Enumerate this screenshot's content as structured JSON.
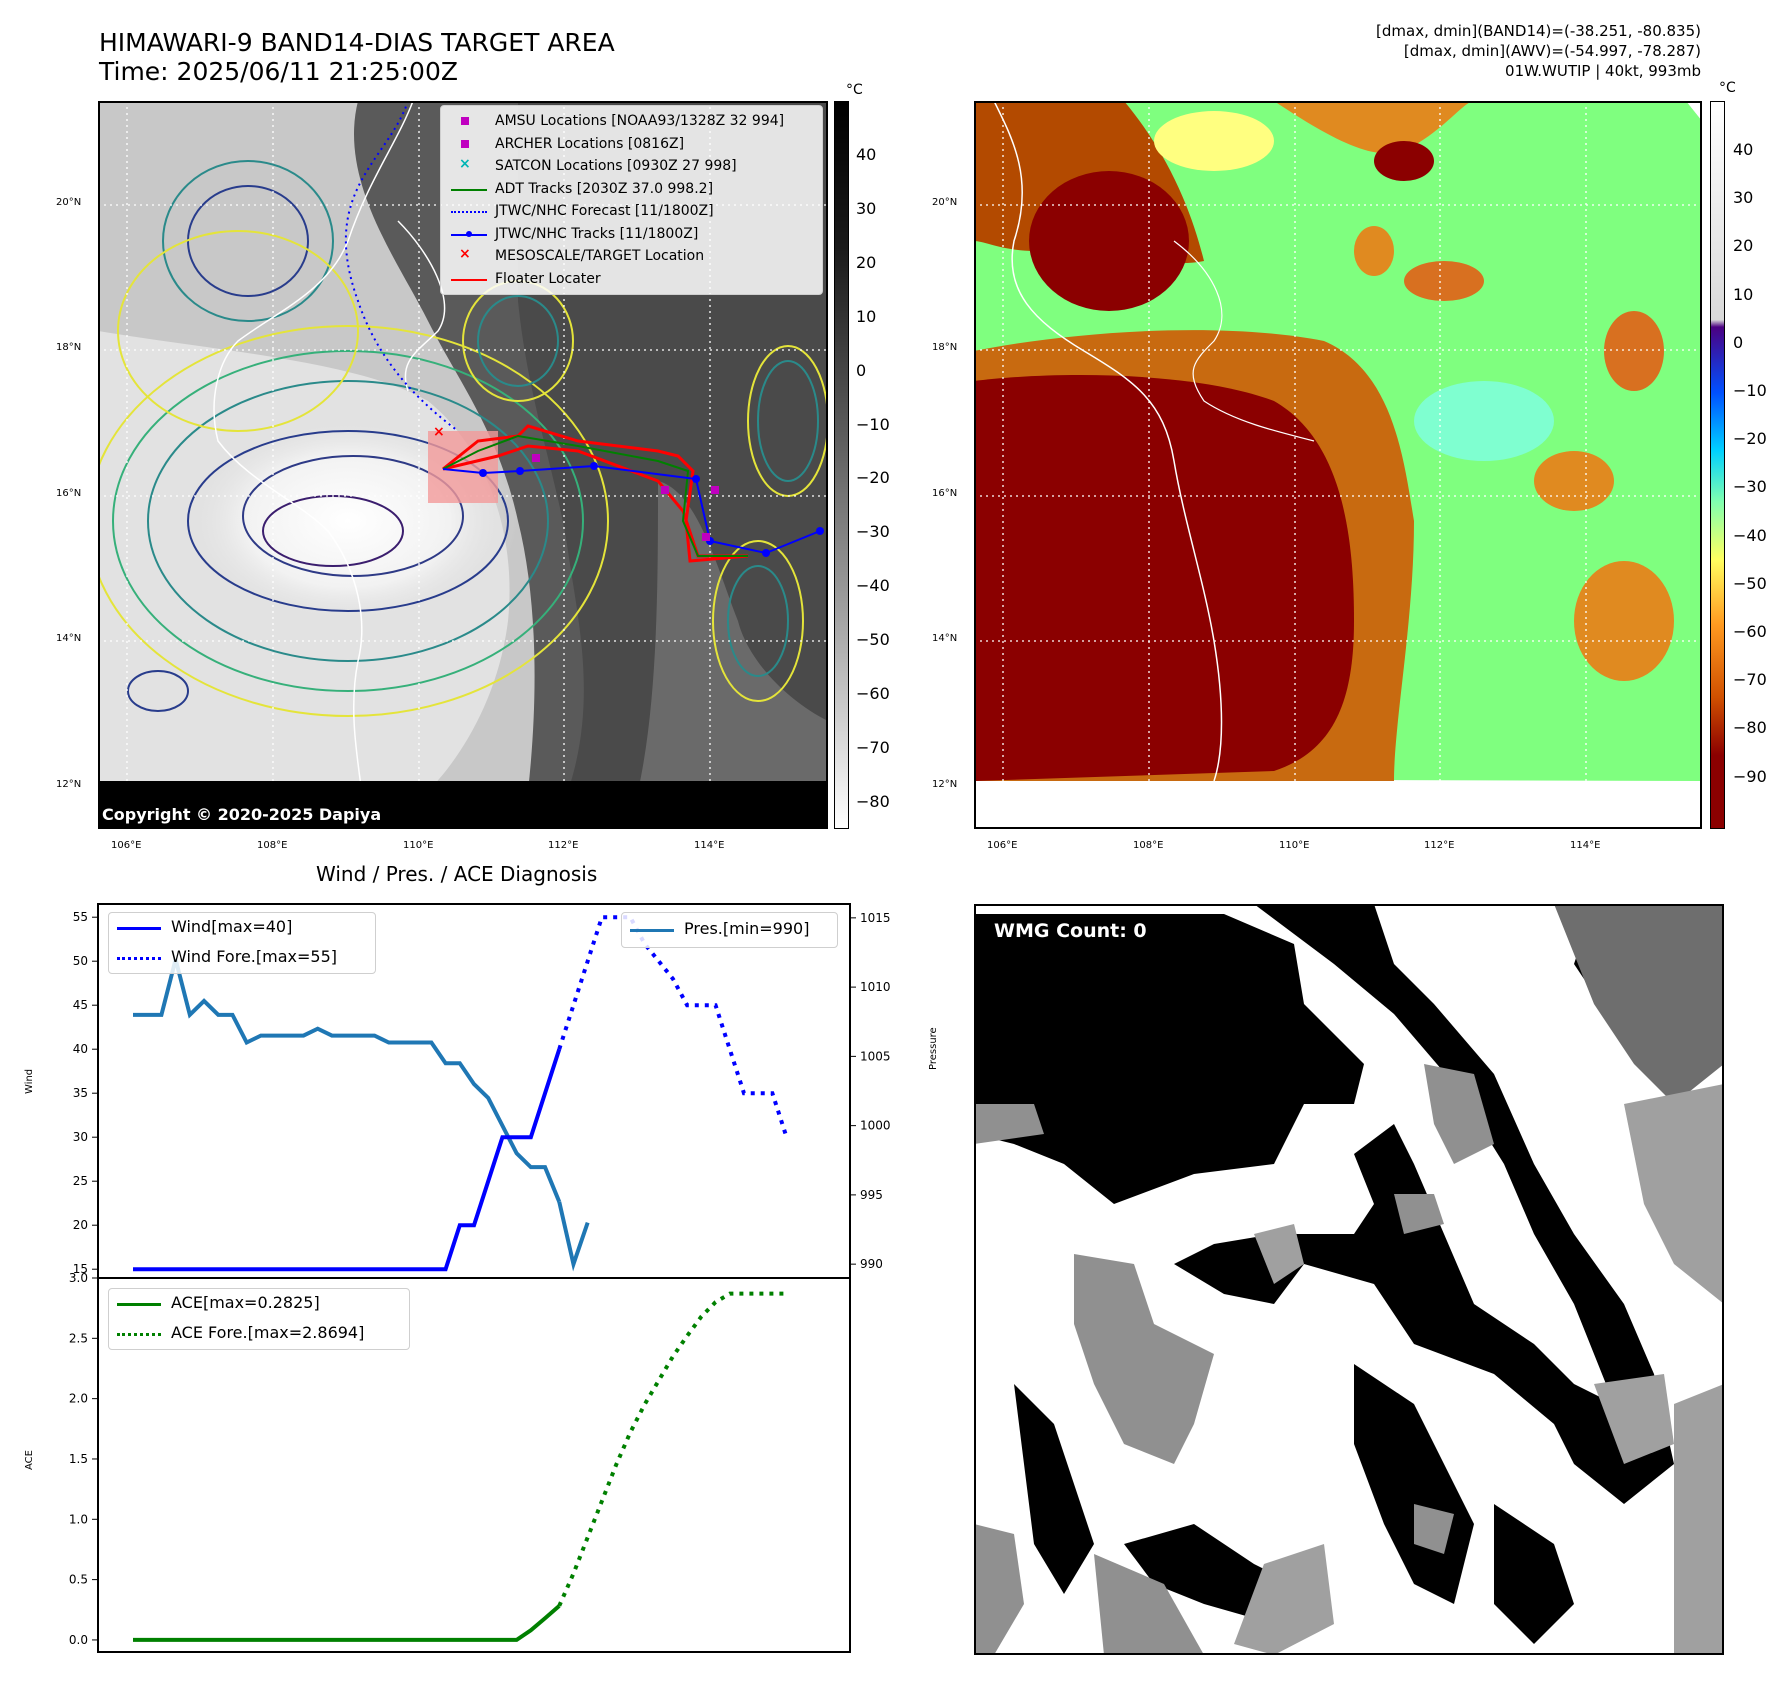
{
  "header": {
    "title_line1": "HIMAWARI-9 BAND14-DIAS TARGET AREA",
    "title_line2": "Time: 2025/06/11 21:25:00Z",
    "right_line1": "[dmax, dmin](BAND14)=(-38.251, -80.835)",
    "right_line2": "[dmax, dmin](AWV)=(-54.997, -78.287)",
    "right_line3": "01W.WUTIP | 40kt, 993mb"
  },
  "map": {
    "lat_labels": [
      "20°N",
      "18°N",
      "16°N",
      "14°N",
      "12°N"
    ],
    "lon_labels": [
      "106°E",
      "108°E",
      "110°E",
      "112°E",
      "114°E"
    ],
    "copyright": "Copyright © 2020-2025 Dapiya",
    "legend": [
      {
        "label": "AMSU Locations [NOAA93/1328Z 32 994]",
        "color": "#c000c0",
        "marker": "square"
      },
      {
        "label": "ARCHER Locations [0816Z]",
        "color": "#c000c0",
        "marker": "square"
      },
      {
        "label": "SATCON Locations [0930Z 27 998]",
        "color": "#00b5b5",
        "marker": "x"
      },
      {
        "label": "ADT Tracks [2030Z 37.0 998.2]",
        "color": "#008000",
        "marker": "line"
      },
      {
        "label": "JTWC/NHC Forecast [11/1800Z]",
        "color": "#0000ff",
        "marker": "dotted"
      },
      {
        "label": "JTWC/NHC Tracks [11/1800Z]",
        "color": "#0000ff",
        "marker": "line-dot"
      },
      {
        "label": "MESOSCALE/TARGET Location",
        "color": "#ff0000",
        "marker": "x"
      },
      {
        "label": "Floater Locater",
        "color": "#ff0000",
        "marker": "line"
      }
    ]
  },
  "colorbars": {
    "unit": "°C",
    "left_ticks": [
      "40",
      "30",
      "20",
      "10",
      "0",
      "−10",
      "−20",
      "−30",
      "−40",
      "−50",
      "−60",
      "−70",
      "−80"
    ],
    "right_ticks": [
      "40",
      "30",
      "20",
      "10",
      "0",
      "−10",
      "−20",
      "−30",
      "−40",
      "−50",
      "−60",
      "−70",
      "−80",
      "−90"
    ]
  },
  "wmg": {
    "label": "WMG Count: 0"
  },
  "chart_data": [
    {
      "type": "line",
      "title": "Wind / Pres. / ACE Diagnosis",
      "ylabel": "Wind",
      "ylabel_right": "Pressure",
      "ylim": [
        14,
        56.5
      ],
      "ylim_right": [
        989,
        1016
      ],
      "y_ticks": [
        15,
        20,
        25,
        30,
        35,
        40,
        45,
        50,
        55
      ],
      "y_ticks_right": [
        990,
        995,
        1000,
        1005,
        1010,
        1015
      ],
      "legend_left": [
        "Wind[max=40]",
        "Wind Fore.[max=55]"
      ],
      "legend_right": [
        "Pres.[min=990]"
      ],
      "colors": {
        "wind": "#0000ff",
        "pressure": "#1f77b4"
      },
      "series": [
        {
          "name": "Wind[max=40]",
          "x": [
            0,
            1,
            2,
            3,
            4,
            5,
            6,
            7,
            8,
            9,
            10,
            11,
            12,
            13,
            14,
            15,
            16,
            17,
            18,
            19,
            20,
            21,
            22,
            23,
            24,
            25,
            26,
            27,
            28,
            29,
            30
          ],
          "values": [
            15,
            15,
            15,
            15,
            15,
            15,
            15,
            15,
            15,
            15,
            15,
            15,
            15,
            15,
            15,
            15,
            15,
            15,
            15,
            15,
            15,
            15,
            15,
            20,
            20,
            25,
            30,
            30,
            30,
            35,
            40
          ]
        },
        {
          "name": "Wind Fore.[max=55]",
          "x": [
            30,
            31,
            32,
            33,
            34,
            35,
            36,
            37,
            38,
            39,
            40,
            41,
            42,
            43,
            44,
            45,
            46
          ],
          "values": [
            40,
            45,
            50,
            55,
            55,
            55,
            52,
            50,
            48,
            45,
            45,
            45,
            40,
            35,
            35,
            35,
            30
          ]
        },
        {
          "name": "Pres.[min=990]",
          "x": [
            0,
            1,
            2,
            3,
            4,
            5,
            6,
            7,
            8,
            9,
            10,
            11,
            12,
            13,
            14,
            15,
            16,
            17,
            18,
            19,
            20,
            21,
            22,
            23,
            24,
            25,
            26,
            27,
            28,
            29,
            30
          ],
          "values": [
            1008,
            1008,
            1008,
            1012,
            1008,
            1009,
            1008,
            1008,
            1006,
            1006.5,
            1006.5,
            1006.5,
            1006.5,
            1007,
            1006.5,
            1006.5,
            1006.5,
            1006.5,
            1006,
            1006,
            1006,
            1006,
            1004.5,
            1004.5,
            1003,
            1002,
            1000,
            998,
            997,
            997,
            994.5
          ]
        },
        {
          "name": "Pres. tail",
          "x": [
            30,
            31,
            32
          ],
          "values": [
            994.5,
            990,
            993
          ]
        }
      ]
    },
    {
      "type": "line",
      "ylabel": "ACE",
      "ylim": [
        -0.1,
        3.0
      ],
      "y_ticks": [
        0.0,
        0.5,
        1.0,
        1.5,
        2.0,
        2.5,
        3.0
      ],
      "legend": [
        "ACE[max=0.2825]",
        "ACE Fore.[max=2.8694]"
      ],
      "colors": {
        "ace": "#008000"
      },
      "series": [
        {
          "name": "ACE[max=0.2825]",
          "x": [
            0,
            5,
            10,
            15,
            20,
            25,
            26,
            27,
            28,
            29,
            30
          ],
          "values": [
            0,
            0,
            0,
            0,
            0,
            0,
            0,
            0,
            0.08,
            0.18,
            0.2825
          ]
        },
        {
          "name": "ACE Fore.[max=2.8694]",
          "x": [
            30,
            31,
            32,
            33,
            34,
            35,
            36,
            37,
            38,
            39,
            40,
            41,
            42,
            43,
            44,
            45,
            46
          ],
          "values": [
            0.2825,
            0.55,
            0.85,
            1.15,
            1.45,
            1.72,
            1.95,
            2.15,
            2.35,
            2.52,
            2.68,
            2.8,
            2.87,
            2.87,
            2.87,
            2.87,
            2.87
          ]
        }
      ]
    }
  ]
}
